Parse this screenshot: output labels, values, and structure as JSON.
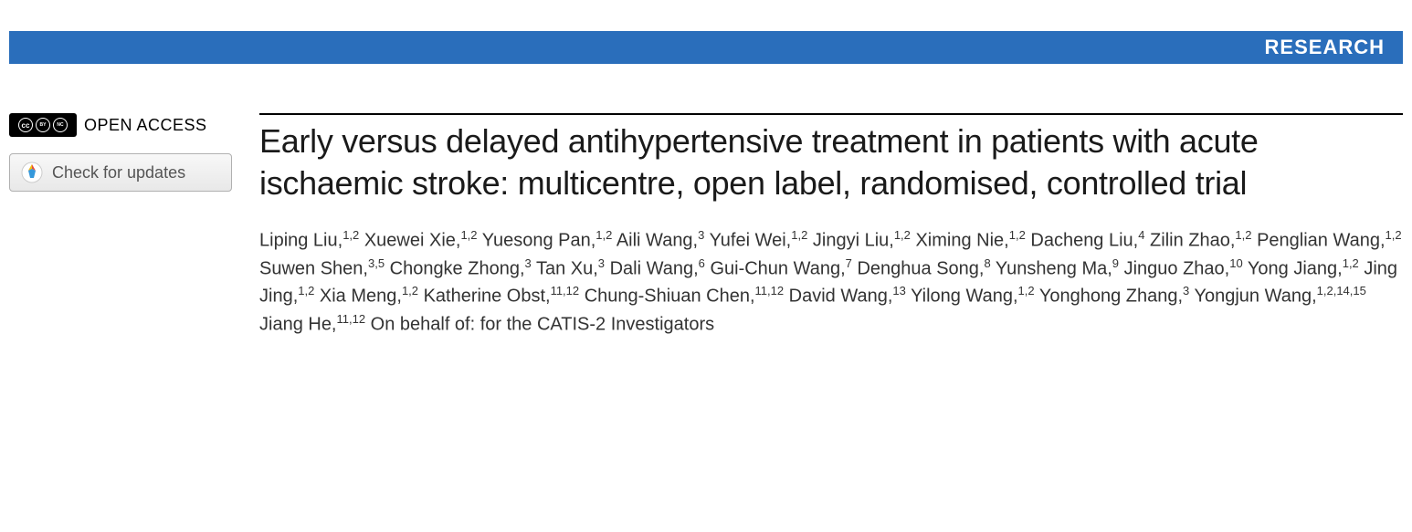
{
  "header": {
    "section_label": "RESEARCH",
    "bar_color": "#2a6ebb"
  },
  "sidebar": {
    "open_access_label": "OPEN ACCESS",
    "cc_glyph_1": "cc",
    "cc_glyph_2": "BY",
    "cc_glyph_3": "NC",
    "updates_button_label": "Check for updates"
  },
  "article": {
    "title": "Early versus delayed antihypertensive treatment in patients with acute ischaemic stroke: multicentre, open label, randomised, controlled trial",
    "authors": [
      {
        "name": "Liping Liu",
        "aff": "1,2"
      },
      {
        "name": "Xuewei Xie",
        "aff": "1,2"
      },
      {
        "name": "Yuesong Pan",
        "aff": "1,2"
      },
      {
        "name": "Aili Wang",
        "aff": "3"
      },
      {
        "name": "Yufei Wei",
        "aff": "1,2"
      },
      {
        "name": "Jingyi Liu",
        "aff": "1,2"
      },
      {
        "name": "Ximing Nie",
        "aff": "1,2"
      },
      {
        "name": "Dacheng Liu",
        "aff": "4"
      },
      {
        "name": "Zilin Zhao",
        "aff": "1,2"
      },
      {
        "name": "Penglian Wang",
        "aff": "1,2"
      },
      {
        "name": "Suwen Shen",
        "aff": "3,5"
      },
      {
        "name": "Chongke Zhong",
        "aff": "3"
      },
      {
        "name": "Tan Xu",
        "aff": "3"
      },
      {
        "name": "Dali Wang",
        "aff": "6"
      },
      {
        "name": "Gui-Chun Wang",
        "aff": "7"
      },
      {
        "name": "Denghua Song",
        "aff": "8"
      },
      {
        "name": "Yunsheng Ma",
        "aff": "9"
      },
      {
        "name": "Jinguo Zhao",
        "aff": "10"
      },
      {
        "name": "Yong Jiang",
        "aff": "1,2"
      },
      {
        "name": "Jing Jing",
        "aff": "1,2"
      },
      {
        "name": "Xia Meng",
        "aff": "1,2"
      },
      {
        "name": "Katherine Obst",
        "aff": "11,12"
      },
      {
        "name": "Chung-Shiuan Chen",
        "aff": "11,12"
      },
      {
        "name": "David Wang",
        "aff": "13"
      },
      {
        "name": "Yilong Wang",
        "aff": "1,2"
      },
      {
        "name": "Yonghong Zhang",
        "aff": "3"
      },
      {
        "name": "Yongjun Wang",
        "aff": "1,2,14,15"
      },
      {
        "name": "Jiang He",
        "aff": "11,12"
      }
    ],
    "on_behalf_text": "On behalf of: for the CATIS-2 Investigators"
  },
  "colors": {
    "text_primary": "#1a1a1a",
    "text_secondary": "#333333",
    "background": "#ffffff",
    "border": "#000000"
  }
}
